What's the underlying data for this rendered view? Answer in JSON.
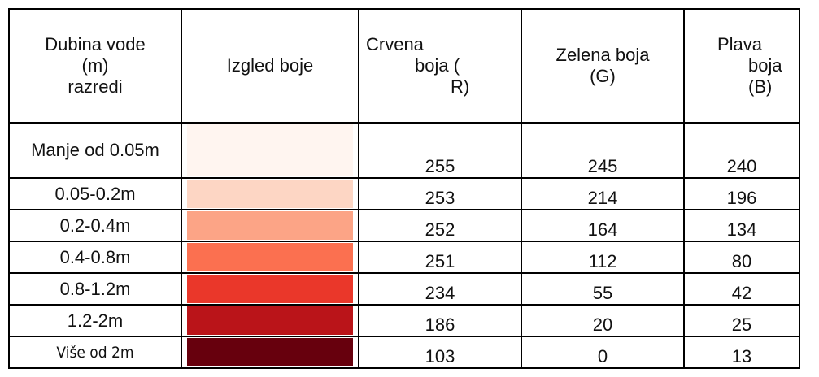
{
  "table": {
    "header": [
      [
        "Dubina vode",
        "(m)",
        "razredi"
      ],
      [
        "Izgled boje"
      ],
      [
        "Crvena",
        "boja (",
        "R)"
      ],
      [
        "Zelena boja",
        "(G)"
      ],
      [
        "Plava",
        "boja",
        "(B)"
      ]
    ],
    "rows": [
      [
        "Manje od 0.05m",
        255,
        245,
        240
      ],
      [
        "0.05-0.2m",
        253,
        214,
        196
      ],
      [
        "0.2-0.4m",
        252,
        164,
        134
      ],
      [
        "0.4-0.8m",
        251,
        112,
        80
      ],
      [
        "0.8-1.2m",
        234,
        55,
        42
      ],
      [
        "1.2-2m",
        186,
        20,
        25
      ],
      [
        "Više od 2m",
        103,
        0,
        13
      ]
    ]
  }
}
